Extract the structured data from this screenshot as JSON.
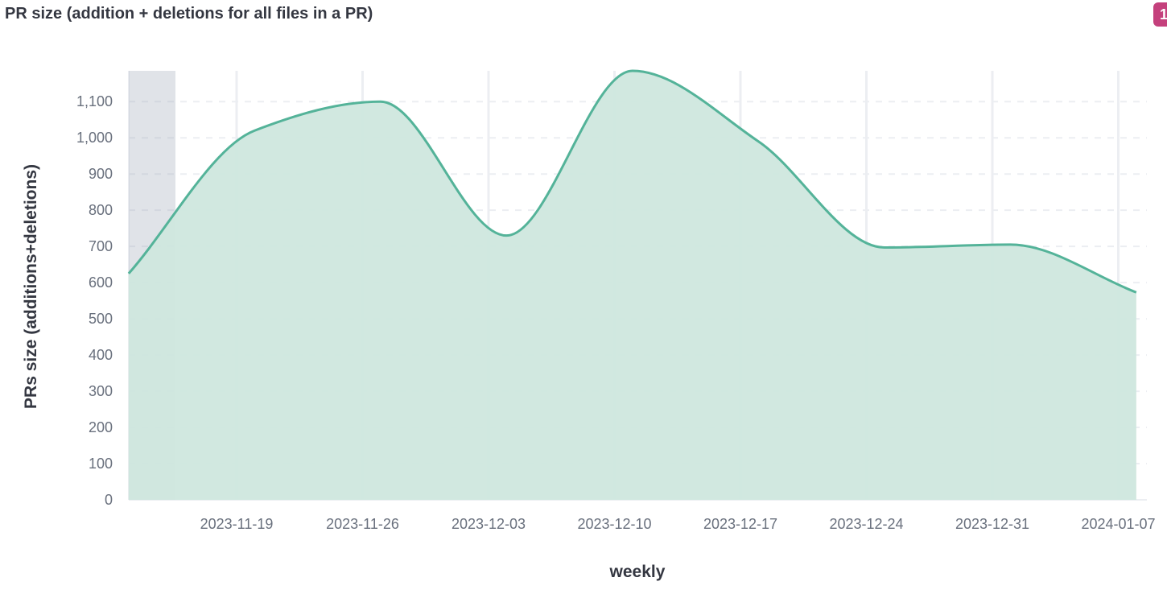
{
  "header": {
    "title": "PR size (addition + deletions for all files in a PR)",
    "badge": "1"
  },
  "chart_data": {
    "type": "area",
    "title": "PR size (addition + deletions for all files in a PR)",
    "xlabel": "weekly",
    "ylabel": "PRs size (additions+deletions)",
    "x": [
      "2023-11-13",
      "2023-11-20",
      "2023-11-27",
      "2023-12-04",
      "2023-12-11",
      "2023-12-18",
      "2023-12-25",
      "2024-01-01",
      "2024-01-08"
    ],
    "values": [
      625,
      1020,
      1100,
      730,
      1185,
      990,
      697,
      705,
      573
    ],
    "ylim": [
      0,
      1185
    ],
    "yticks": [
      0,
      100,
      200,
      300,
      400,
      500,
      600,
      700,
      800,
      900,
      1000,
      1100
    ],
    "ytick_labels": [
      "0",
      "100",
      "200",
      "300",
      "400",
      "500",
      "600",
      "700",
      "800",
      "900",
      "1,000",
      "1,100"
    ],
    "xticks": [
      "2023-11-19",
      "2023-11-26",
      "2023-12-03",
      "2023-12-10",
      "2023-12-17",
      "2023-12-24",
      "2023-12-31",
      "2024-01-07"
    ],
    "grid": true,
    "interpolation": "monotone",
    "colors": {
      "line": "#54b399",
      "fill": "#cfe7de",
      "highlight": "#98a2b3"
    }
  }
}
